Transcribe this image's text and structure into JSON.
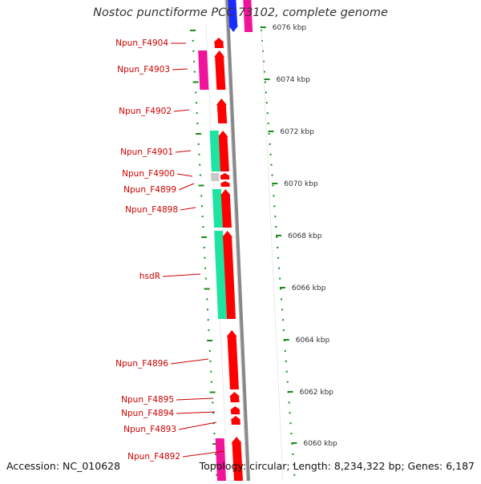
{
  "title": "Nostoc punctiforme PCC 73102, complete genome",
  "footer": {
    "accession": "Accession: NC_010628",
    "summary": "Topology: circular; Length: 8,234,322 bp; Genes: 6,187"
  },
  "colors": {
    "gene_red": "#ff0000",
    "gene_green": "#1de4a0",
    "gene_magenta": "#f0149a",
    "gene_gray": "#c8c8c8",
    "gene_blue": "#1a2bff",
    "label_red": "#cc0000",
    "tick_green": "#1a8a1a",
    "backbone": "#888888"
  },
  "scale_labels": [
    "6076 kbp",
    "6074 kbp",
    "6072 kbp",
    "6070 kbp",
    "6068 kbp",
    "6066 kbp",
    "6064 kbp",
    "6062 kbp",
    "6060 kbp"
  ],
  "gene_labels": [
    "Npun_F4904",
    "Npun_F4903",
    "Npun_F4902",
    "Npun_F4901",
    "Npun_F4900",
    "Npun_F4899",
    "Npun_F4898",
    "hsdR",
    "Npun_F4896",
    "Npun_F4895",
    "Npun_F4894",
    "Npun_F4893",
    "Npun_F4892"
  ]
}
